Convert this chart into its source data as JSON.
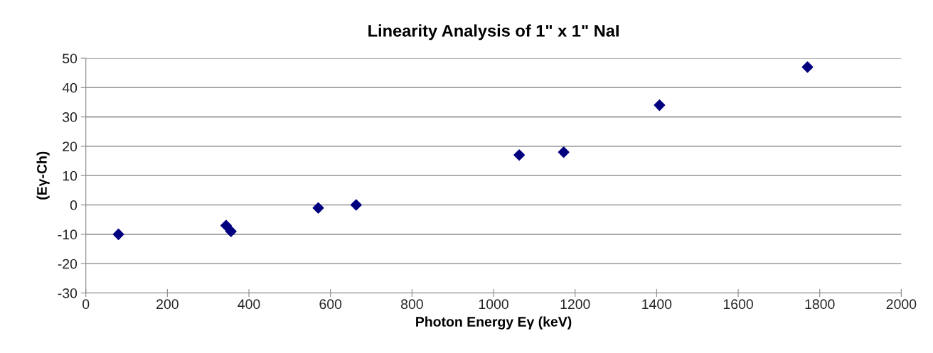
{
  "chart_data": {
    "type": "scatter",
    "title": "Linearity Analysis of 1\" x 1\" NaI",
    "xlabel": "Photon Energy Eγ (keV)",
    "ylabel": "(Eγ-Ch)",
    "x": [
      80,
      344,
      356,
      570,
      663,
      1063,
      1172,
      1407,
      1770
    ],
    "series": [
      {
        "color": "#00007f",
        "values": [
          -10,
          -7,
          -9,
          -1,
          0,
          17,
          18,
          34,
          47
        ]
      }
    ],
    "xlim": [
      0,
      2000
    ],
    "xticks": [
      0,
      200,
      400,
      600,
      800,
      1000,
      1200,
      1400,
      1600,
      1800,
      2000
    ],
    "ylim": [
      -30,
      50
    ],
    "yticks": [
      -30,
      -20,
      -10,
      0,
      10,
      20,
      30,
      40,
      50
    ],
    "grid": "y",
    "marker": "diamond",
    "legend": false
  }
}
